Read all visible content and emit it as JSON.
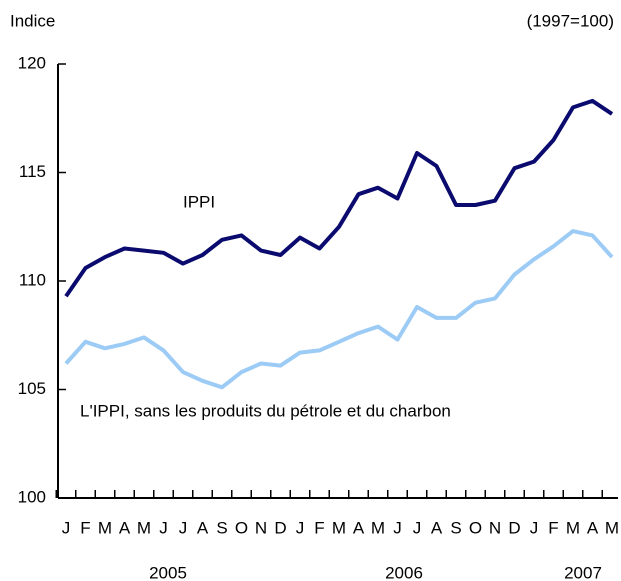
{
  "chart_data": {
    "type": "line",
    "y_axis_label": "Indice",
    "annotation": "(1997=100)",
    "categories": [
      "J",
      "F",
      "M",
      "A",
      "M",
      "J",
      "J",
      "A",
      "S",
      "O",
      "N",
      "D",
      "J",
      "F",
      "M",
      "A",
      "M",
      "J",
      "J",
      "A",
      "S",
      "O",
      "N",
      "D",
      "J",
      "F",
      "M",
      "A",
      "M"
    ],
    "year_labels": [
      "2005",
      "2006",
      "2007"
    ],
    "ylim": [
      100,
      120
    ],
    "yticks": [
      100,
      105,
      110,
      115,
      120
    ],
    "grid": false,
    "series": [
      {
        "name": "IPPI",
        "color": "#0b0b6f",
        "values": [
          109.3,
          110.6,
          111.1,
          111.5,
          111.4,
          111.3,
          110.8,
          111.2,
          111.9,
          112.1,
          111.4,
          111.2,
          112.0,
          111.5,
          112.5,
          114.0,
          114.3,
          113.8,
          115.9,
          115.3,
          113.5,
          113.5,
          113.7,
          115.2,
          115.5,
          116.5,
          118.0,
          118.3,
          117.7
        ]
      },
      {
        "name": "L'IPPI, sans les produits du pétrole et du charbon",
        "color": "#9ccbf5",
        "values": [
          106.2,
          107.2,
          106.9,
          107.1,
          107.4,
          106.8,
          105.8,
          105.4,
          105.1,
          105.8,
          106.2,
          106.1,
          106.7,
          106.8,
          107.2,
          107.6,
          107.9,
          107.3,
          108.8,
          108.3,
          108.3,
          109.0,
          109.2,
          110.3,
          111.0,
          111.6,
          112.3,
          112.1,
          111.1
        ]
      }
    ]
  }
}
